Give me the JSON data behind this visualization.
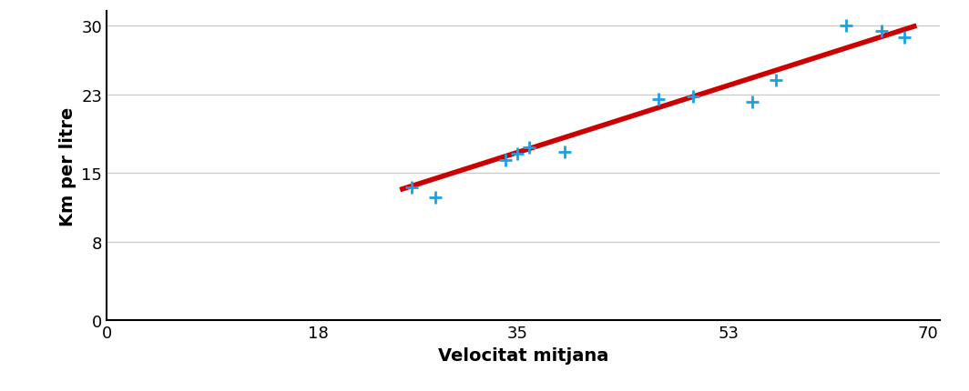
{
  "scatter_x": [
    26,
    28,
    34,
    35,
    36,
    39,
    47,
    50,
    55,
    57,
    63,
    66,
    68
  ],
  "scatter_y": [
    13.5,
    12.5,
    16.3,
    17.0,
    17.6,
    17.2,
    22.5,
    22.8,
    22.2,
    24.5,
    30.0,
    29.5,
    28.8
  ],
  "trend_x": [
    25,
    69
  ],
  "trend_y": [
    13.3,
    30.0
  ],
  "marker_color": "#1BA1E2",
  "line_color": "#CC0000",
  "xlabel": "Velocitat mitjana",
  "ylabel": "Km per litre",
  "xlim": [
    0,
    71
  ],
  "ylim": [
    0,
    31.5
  ],
  "xticks": [
    0,
    18,
    35,
    53,
    70
  ],
  "yticks": [
    0,
    8,
    15,
    23,
    30
  ],
  "background_color": "#ffffff",
  "grid_color": "#c8c8c8",
  "xlabel_fontsize": 14,
  "ylabel_fontsize": 14,
  "tick_fontsize": 13,
  "marker_size": 100,
  "marker_lw": 2.0,
  "line_width": 4.0
}
